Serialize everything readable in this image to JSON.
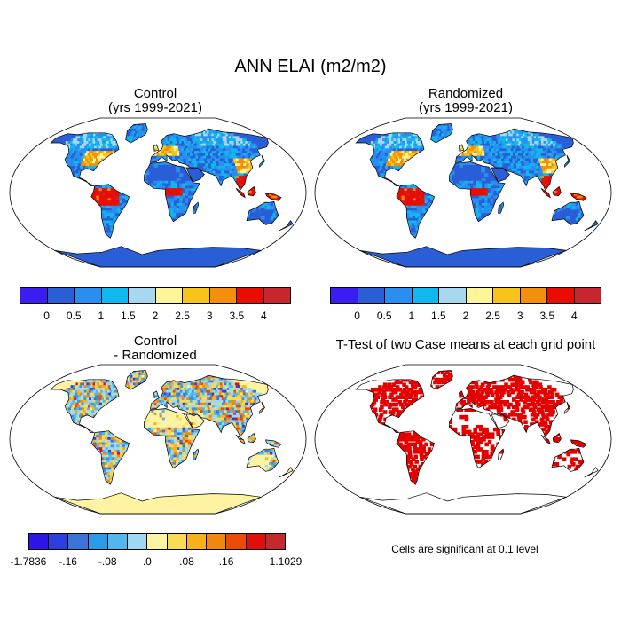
{
  "main_title": "ANN ELAI (m2/m2)",
  "panels": {
    "control": {
      "title_line1": "Control",
      "title_line2": "(yrs 1999-2021)"
    },
    "randomized": {
      "title_line1": "Randomized",
      "title_line2": "(yrs 1999-2021)"
    },
    "difference": {
      "title_line1": "Control",
      "title_line2": "- Randomized"
    },
    "ttest": {
      "title": "T-Test of two Case means at each grid point"
    }
  },
  "colorbar_lai": {
    "colors": [
      "#3b1cf2",
      "#2a5ed7",
      "#2a8ef0",
      "#0fb8ee",
      "#a6d8f0",
      "#fdf59a",
      "#f8c419",
      "#f38f0d",
      "#ea0c00",
      "#c8262f"
    ],
    "tick_labels": [
      "0",
      "0.5",
      "1",
      "1.5",
      "2",
      "2.5",
      "3",
      "3.5",
      "4"
    ]
  },
  "colorbar_diff": {
    "colors": [
      "#2e14e6",
      "#2d3ee0",
      "#3a74d8",
      "#2a9be9",
      "#52b6ef",
      "#9ed8f2",
      "#fdf3a0",
      "#f9dc55",
      "#f7b11b",
      "#f2870e",
      "#eb4b06",
      "#e20e0a",
      "#c42a2d"
    ],
    "tick_labels": [
      "-1.7836",
      "-.16",
      "-.08",
      ".0",
      ".08",
      ".16",
      "1.1029"
    ]
  },
  "significance_note": "Cells are significant at 0.1 level"
}
